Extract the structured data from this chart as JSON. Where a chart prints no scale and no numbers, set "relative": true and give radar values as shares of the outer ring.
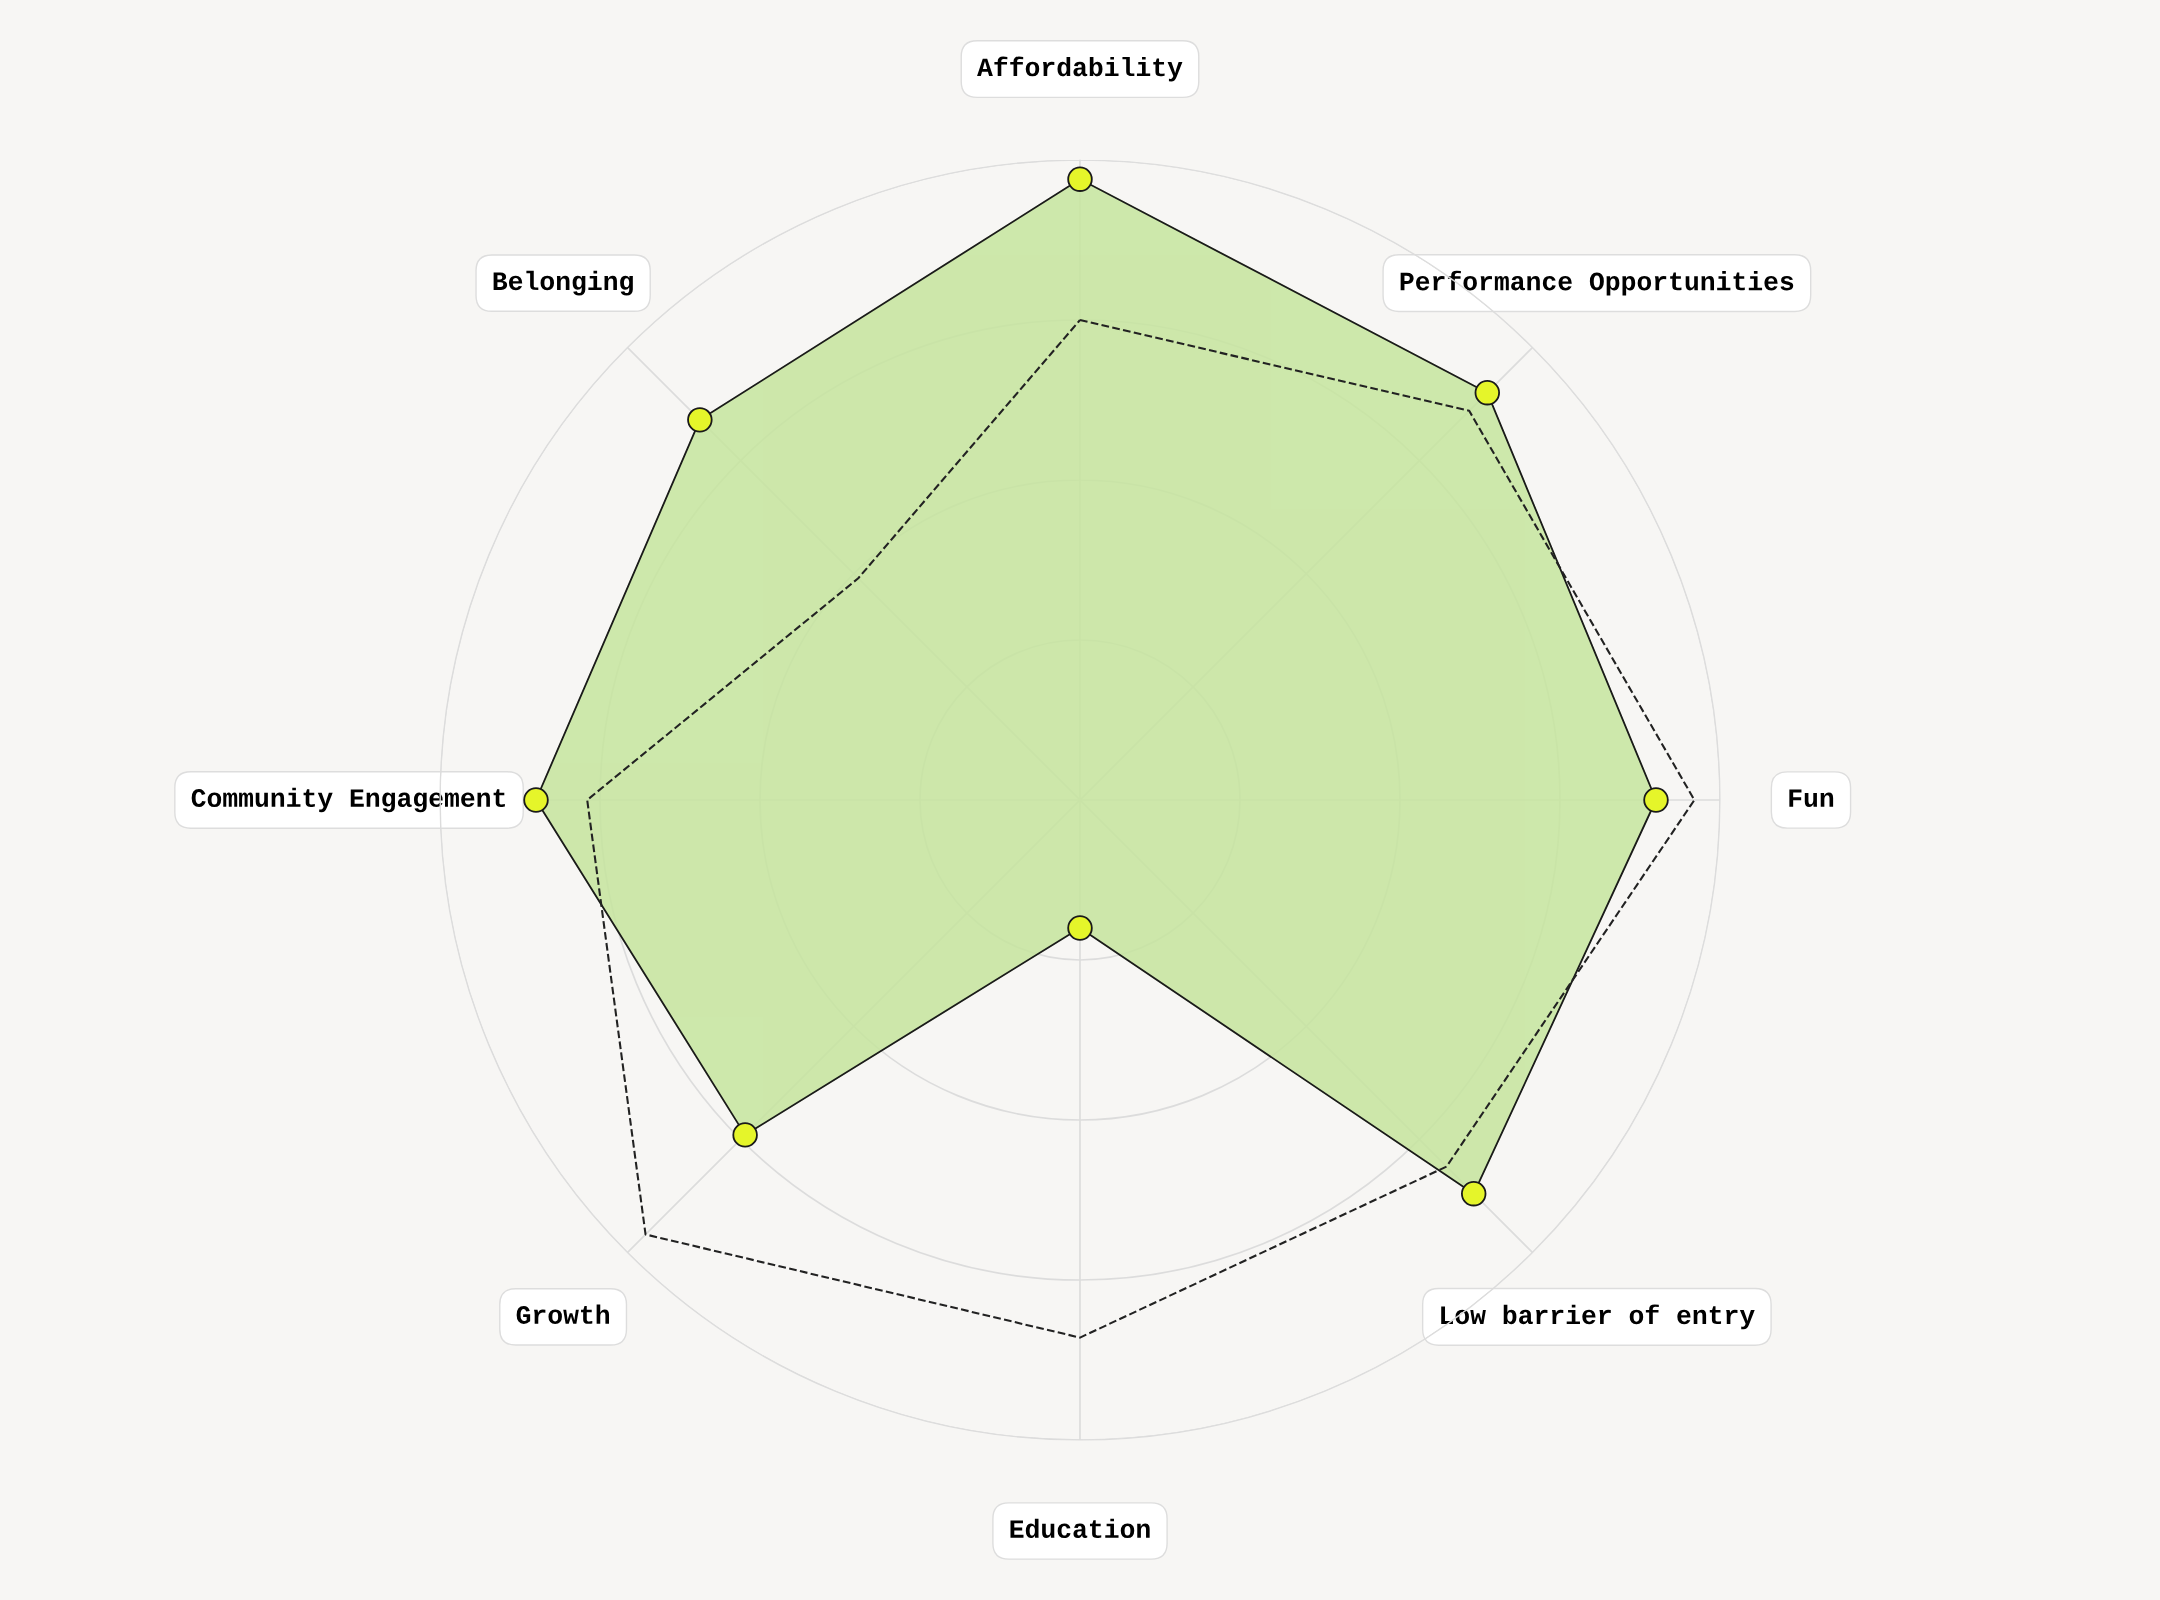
{
  "chart_data": {
    "type": "radar",
    "relative": true,
    "categories": [
      "Affordability",
      "Performance Opportunities",
      "Fun",
      "Low barrier of entry",
      "Education",
      "Growth",
      "Community Engagement",
      "Belonging"
    ],
    "series": [
      {
        "color": "#c6e59e",
        "values": [
          0.97,
          0.9,
          0.9,
          0.87,
          0.2,
          0.74,
          0.85,
          0.84
        ],
        "marker": "circle",
        "line_style": "solid"
      },
      {
        "color": "#222222",
        "values": [
          0.75,
          0.86,
          0.96,
          0.81,
          0.84,
          0.96,
          0.77,
          0.49
        ],
        "marker": "none",
        "line_style": "dashed"
      }
    ],
    "grid": true,
    "legend": false
  }
}
